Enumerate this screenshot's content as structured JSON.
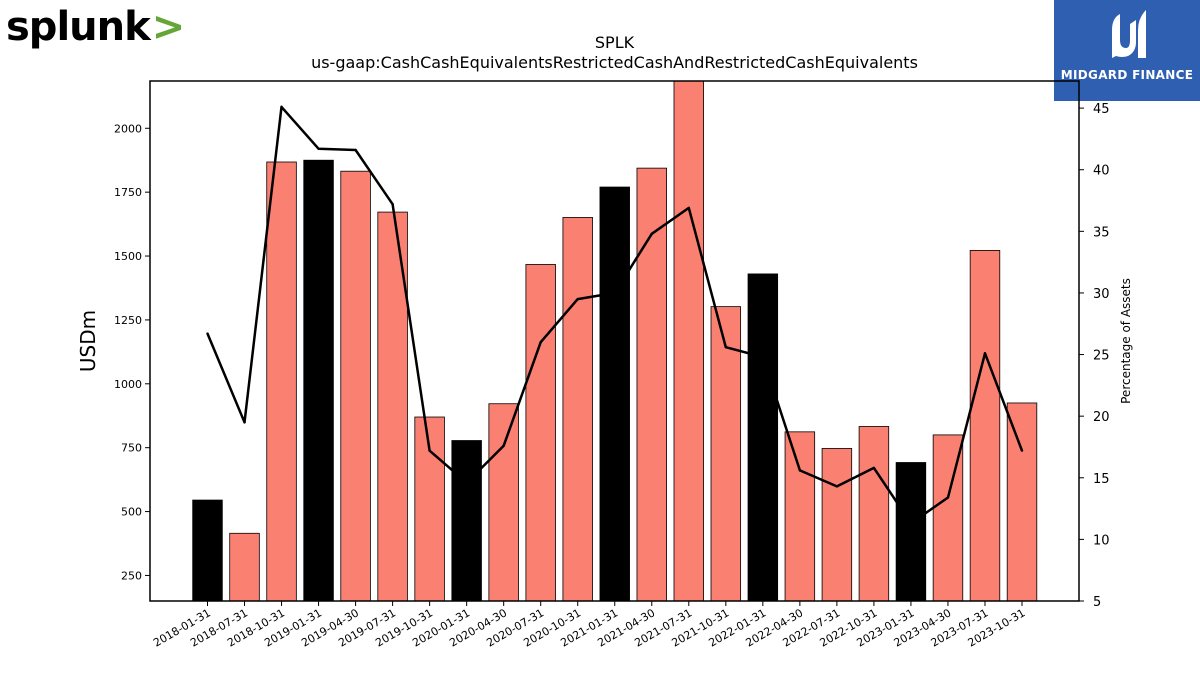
{
  "branding": {
    "company_logo_text": "splunk",
    "company_logo_chevron": ">",
    "partner_logo_text": "MIDGARD FINANCE",
    "company_color": "#000000",
    "chevron_color": "#65a637",
    "partner_color": "#2f5fb0"
  },
  "chart_data": {
    "type": "bar",
    "title": "SPLK",
    "subtitle": "us-gaap:CashCashEquivalentsRestrictedCashAndRestrictedCashEquivalents",
    "ylabel": "USDm",
    "y2label": "Percentage of Assets",
    "categories": [
      "2018-01-31",
      "2018-07-31",
      "2018-10-31",
      "2019-01-31",
      "2019-04-30",
      "2019-07-31",
      "2019-10-31",
      "2020-01-31",
      "2020-04-30",
      "2020-07-31",
      "2020-10-31",
      "2021-01-31",
      "2021-04-30",
      "2021-07-31",
      "2021-10-31",
      "2022-01-31",
      "2022-04-30",
      "2022-07-31",
      "2022-10-31",
      "2023-01-31",
      "2023-04-30",
      "2023-07-31",
      "2023-10-31"
    ],
    "ylim": [
      150,
      2185
    ],
    "y2lim": [
      5,
      47.2
    ],
    "yticks": [
      250,
      500,
      750,
      1000,
      1250,
      1500,
      1750,
      2000
    ],
    "y2ticks": [
      5,
      10,
      15,
      20,
      25,
      30,
      35,
      40,
      45
    ],
    "series": [
      {
        "type": "bar",
        "values": [
          545,
          415,
          1868,
          1875,
          1832,
          1672,
          870,
          778,
          922,
          1467,
          1651,
          1770,
          1844,
          2185,
          1302,
          1430,
          812,
          747,
          833,
          692,
          800,
          1522,
          925
        ],
        "colors": [
          "#000000",
          "#fa8072",
          "#fa8072",
          "#000000",
          "#fa8072",
          "#fa8072",
          "#fa8072",
          "#000000",
          "#fa8072",
          "#fa8072",
          "#fa8072",
          "#000000",
          "#fa8072",
          "#fa8072",
          "#fa8072",
          "#000000",
          "#fa8072",
          "#fa8072",
          "#fa8072",
          "#000000",
          "#fa8072",
          "#fa8072",
          "#fa8072"
        ],
        "edge_color": "#000000"
      },
      {
        "type": "line",
        "axis": "right",
        "values": [
          26.7,
          19.5,
          45.1,
          41.7,
          41.6,
          37.2,
          17.2,
          14.6,
          17.6,
          26.0,
          29.5,
          30.0,
          34.8,
          36.9,
          25.6,
          24.8,
          15.6,
          14.3,
          15.8,
          11.3,
          13.4,
          25.1,
          17.2
        ],
        "color": "#000000"
      }
    ],
    "grid": false,
    "legend": "none"
  }
}
